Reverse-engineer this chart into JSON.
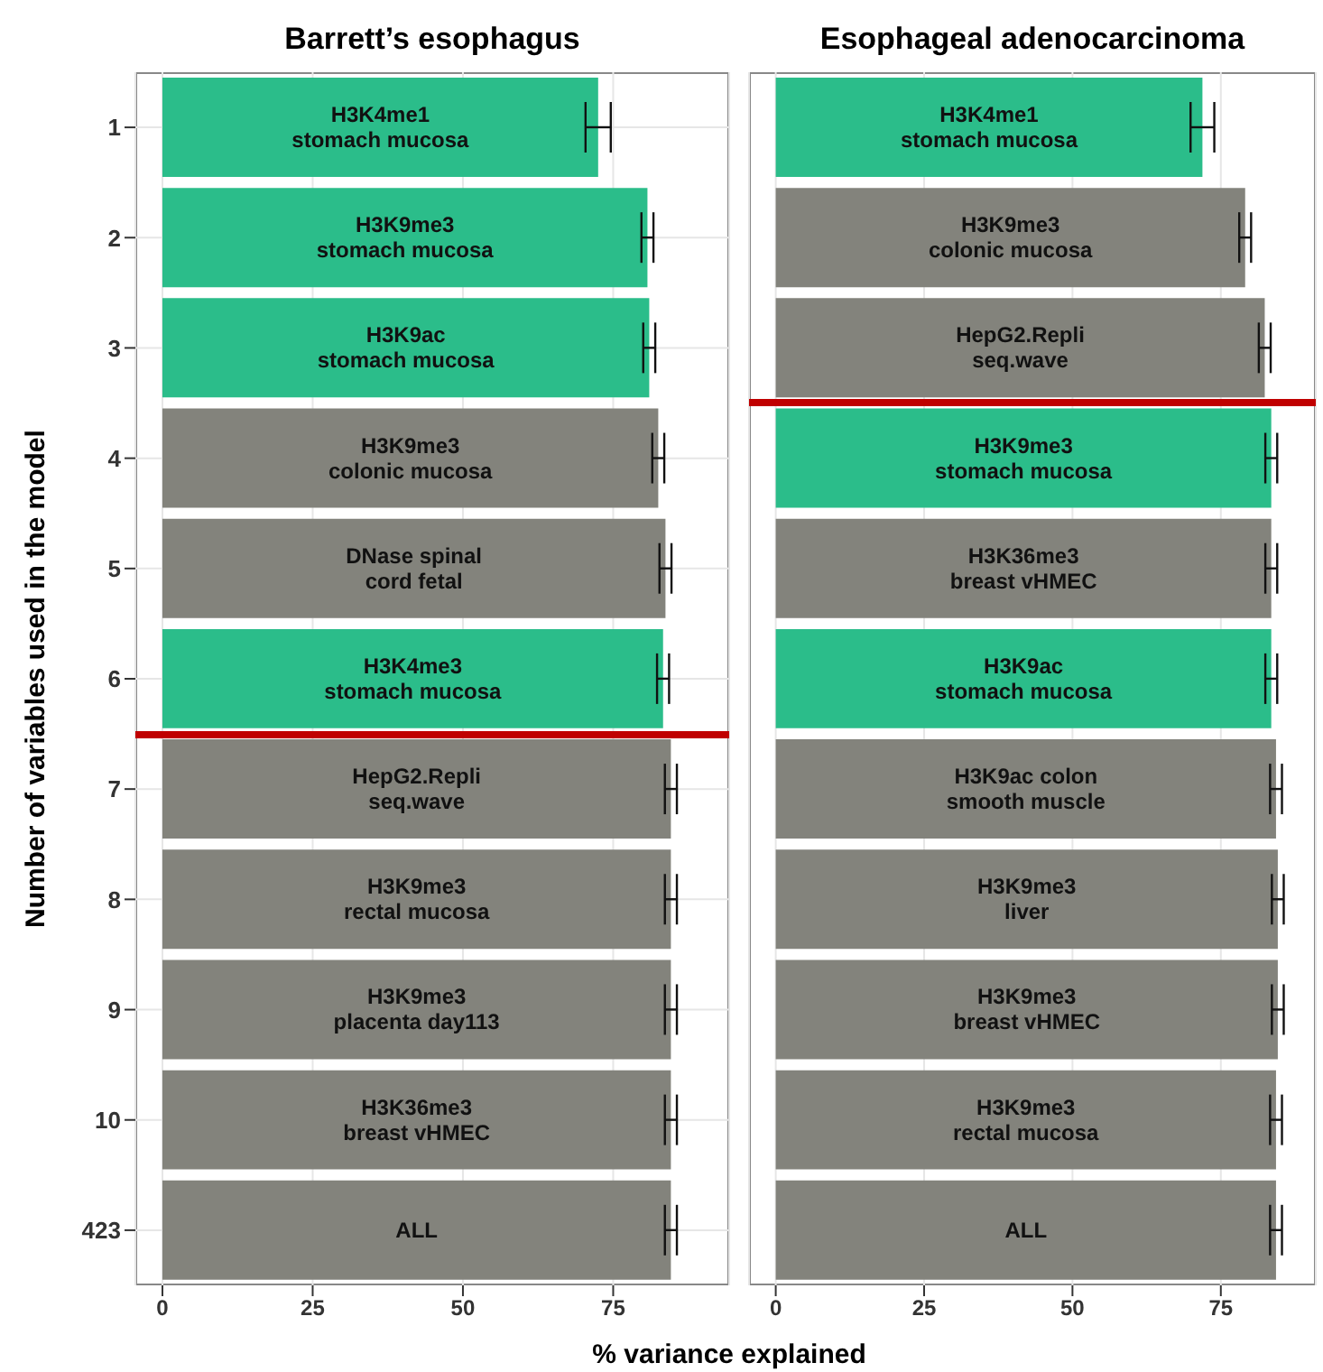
{
  "chart_data": [
    {
      "type": "bar",
      "orientation": "horizontal",
      "title": "Barrett’s esophagus",
      "ylabel": "Number of variables used in the model",
      "xlabel": "% variance explained",
      "categories": [
        "1",
        "2",
        "3",
        "4",
        "5",
        "6",
        "7",
        "8",
        "9",
        "10",
        "423"
      ],
      "values": [
        72.5,
        80.7,
        81,
        82.5,
        83.7,
        83.3,
        84.6,
        84.6,
        84.6,
        84.6,
        84.6
      ],
      "errors": [
        2.1,
        1,
        1,
        1,
        1,
        1,
        1,
        1,
        1,
        1,
        1
      ],
      "colors": [
        "#2bbd8a",
        "#2bbd8a",
        "#2bbd8a",
        "#83837c",
        "#83837c",
        "#2bbd8a",
        "#83837c",
        "#83837c",
        "#83837c",
        "#83837c",
        "#83837c"
      ],
      "annotations": [
        "H3K4me1\nstomach mucosa",
        "H3K9me3\nstomach mucosa",
        "H3K9ac\nstomach mucosa",
        "H3K9me3\ncolonic mucosa",
        "DNase spinal\ncord fetal",
        "H3K4me3\nstomach mucosa",
        "HepG2.Repli\nseq.wave",
        "H3K9me3\nrectal mucosa",
        "H3K9me3\nplacenta day113",
        "H3K36me3\nbreast vHMEC",
        "ALL"
      ],
      "xlim": [
        -4.5,
        94.3
      ],
      "xticks": [
        0,
        25,
        50,
        75
      ],
      "grid": true
    },
    {
      "type": "bar",
      "orientation": "horizontal",
      "title": "Esophageal adenocarcinoma",
      "categories": [
        null,
        null,
        null,
        null,
        null,
        null,
        null,
        null,
        null,
        null,
        null
      ],
      "values": [
        71.9,
        79.1,
        82.4,
        83.5,
        83.5,
        83.5,
        84.3,
        84.6,
        84.6,
        84.3,
        84.3
      ],
      "errors": [
        2,
        1,
        1,
        1,
        1,
        1,
        1,
        1,
        1,
        1,
        1
      ],
      "colors": [
        "#2bbd8a",
        "#83837c",
        "#83837c",
        "#2bbd8a",
        "#83837c",
        "#2bbd8a",
        "#83837c",
        "#83837c",
        "#83837c",
        "#83837c",
        "#83837c"
      ],
      "annotations": [
        "H3K4me1\nstomach mucosa",
        "H3K9me3\ncolonic mucosa",
        "HepG2.Repli\nseq.wave",
        "H3K9me3\nstomach mucosa",
        "H3K36me3\nbreast vHMEC",
        "H3K9ac\nstomach mucosa",
        "H3K9ac colon\nsmooth muscle",
        "H3K9me3\nliver",
        "H3K9me3\nbreast vHMEC",
        "H3K9me3\nrectal mucosa",
        "ALL"
      ],
      "xlim": [
        -4.5,
        91
      ],
      "xticks": [
        0,
        25,
        50,
        75
      ],
      "grid": true,
      "tick_labels": "x"
    }
  ]
}
